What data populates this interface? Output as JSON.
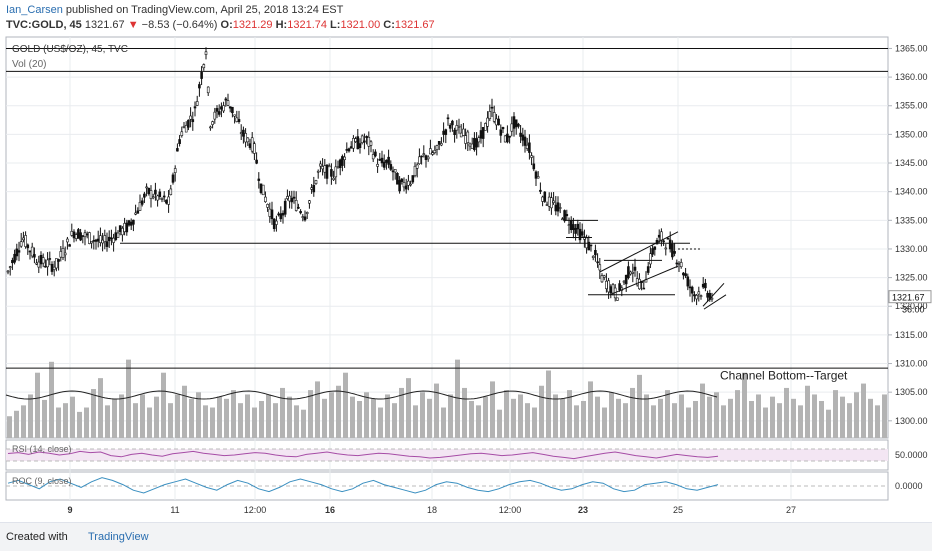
{
  "header": {
    "author": "Ian_Carsen",
    "published_text": " published on TradingView.com, April 25, 2018 13:24 EST",
    "symbol": "TVC:GOLD, 45",
    "last_price": "1321.67",
    "change_arrow": "▼",
    "change": "−8.53 (−0.64%)",
    "o_label": "O:",
    "o_value": "1321.29",
    "h_label": "H:",
    "h_value": "1321.74",
    "l_label": "L:",
    "l_value": "1321.00",
    "c_label": "C:",
    "c_value": "1321.67"
  },
  "footer": {
    "created_with": "Created with",
    "brand": "TradingView"
  },
  "colors": {
    "rsi": "#a64ca6",
    "roc": "#3a8fc0",
    "volume": "#b3b3b3",
    "grid": "#e9ecef",
    "border": "#b0b4bc",
    "text": "#333333"
  },
  "chart_data": {
    "type": "candlestick",
    "title": "GOLD (US$/OZ), 45, TVC",
    "x_ticks": [
      {
        "label": "9",
        "bold": true
      },
      {
        "label": "11",
        "bold": false
      },
      {
        "label": "12:00",
        "bold": false
      },
      {
        "label": "16",
        "bold": true
      },
      {
        "label": "18",
        "bold": false
      },
      {
        "label": "12:00",
        "bold": false
      },
      {
        "label": "23",
        "bold": true
      },
      {
        "label": "25",
        "bold": false
      },
      {
        "label": "27",
        "bold": false
      }
    ],
    "ylim": [
      1297,
      1367
    ],
    "y_ticks": [
      "1365.00",
      "1360.00",
      "1355.00",
      "1350.00",
      "1345.00",
      "1340.00",
      "1335.00",
      "1330.00",
      "1325.00",
      "1320.00",
      "1315.00",
      "1310.00",
      "1305.00",
      "1300.00"
    ],
    "price_label": "1321.67",
    "volume_label": "36.00",
    "price_path": [
      [
        0,
        1326
      ],
      [
        4,
        1332
      ],
      [
        8,
        1328
      ],
      [
        13,
        1327
      ],
      [
        18,
        1333
      ],
      [
        26,
        1331
      ],
      [
        33,
        1334
      ],
      [
        38,
        1340
      ],
      [
        44,
        1338
      ],
      [
        47,
        1350
      ],
      [
        51,
        1354
      ],
      [
        54,
        1365
      ],
      [
        55,
        1352
      ],
      [
        60,
        1356
      ],
      [
        64,
        1350
      ],
      [
        67,
        1348
      ],
      [
        69,
        1341
      ],
      [
        73,
        1334
      ],
      [
        77,
        1339
      ],
      [
        81,
        1336
      ],
      [
        85,
        1344
      ],
      [
        89,
        1343
      ],
      [
        93,
        1348
      ],
      [
        98,
        1349
      ],
      [
        101,
        1345
      ],
      [
        104,
        1345
      ],
      [
        107,
        1341
      ],
      [
        110,
        1342
      ],
      [
        113,
        1346
      ],
      [
        117,
        1347
      ],
      [
        120,
        1352
      ],
      [
        124,
        1350
      ],
      [
        128,
        1348
      ],
      [
        132,
        1354
      ],
      [
        136,
        1349
      ],
      [
        138,
        1352
      ],
      [
        142,
        1348
      ],
      [
        146,
        1339
      ],
      [
        150,
        1337
      ],
      [
        153,
        1335
      ],
      [
        157,
        1332
      ],
      [
        160,
        1329
      ],
      [
        162,
        1325
      ],
      [
        166,
        1322
      ],
      [
        168,
        1324
      ],
      [
        170,
        1327
      ],
      [
        173,
        1323
      ],
      [
        176,
        1330
      ],
      [
        178,
        1332
      ],
      [
        180,
        1331
      ],
      [
        183,
        1328
      ],
      [
        185,
        1325
      ],
      [
        187,
        1322
      ],
      [
        190,
        1323
      ],
      [
        192,
        1321.67
      ]
    ],
    "volume_ylim": [
      0,
      100
    ],
    "volume_values": [
      20,
      25,
      30,
      40,
      60,
      35,
      70,
      28,
      32,
      38,
      24,
      28,
      45,
      55,
      30,
      36,
      40,
      72,
      32,
      40,
      28,
      38,
      60,
      32,
      40,
      48,
      36,
      42,
      30,
      28,
      38,
      36,
      44,
      32,
      40,
      28,
      34,
      40,
      32,
      46,
      38,
      30,
      26,
      44,
      52,
      36,
      42,
      48,
      60,
      38,
      34,
      42,
      36,
      28,
      40,
      32,
      46,
      55,
      30,
      42,
      36,
      50,
      28,
      40,
      72,
      46,
      34,
      30,
      38,
      52,
      26,
      44,
      36,
      40,
      32,
      28,
      48,
      62,
      40,
      36,
      44,
      30,
      34,
      52,
      38,
      28,
      42,
      36,
      32,
      46,
      58,
      40,
      30,
      36,
      44,
      32,
      40,
      28,
      34,
      50,
      38,
      42,
      30,
      36,
      44,
      60,
      34,
      40,
      28,
      38,
      32,
      46,
      36,
      30,
      48,
      40,
      34,
      26,
      44,
      38,
      32,
      42,
      50,
      36,
      30,
      40
    ],
    "volume_ma": {
      "name": "Vol (20)"
    },
    "channel_bottom_annotation": "Channel Bottom--Target",
    "rsi": {
      "name": "RSI (14, close)",
      "tick": "50.0000",
      "ylim": [
        0,
        100
      ],
      "band": [
        30,
        70
      ],
      "values": [
        55,
        58,
        52,
        60,
        56,
        50,
        54,
        62,
        58,
        60,
        48,
        44,
        52,
        56,
        50,
        46,
        54,
        58,
        62,
        56,
        52,
        48,
        50,
        54,
        58,
        56,
        50,
        46,
        44,
        52,
        56,
        60,
        54,
        50,
        48,
        52,
        56,
        54,
        50,
        46,
        44,
        40,
        42,
        46,
        50,
        54,
        56,
        52,
        48,
        50,
        54,
        58,
        52,
        46,
        42,
        38,
        44,
        50,
        56,
        60,
        54,
        48,
        44,
        40,
        46,
        52,
        48,
        44,
        42,
        46
      ]
    },
    "roc": {
      "name": "ROC (9, close)",
      "tick": "0.0000",
      "ylim": [
        -1,
        1
      ],
      "values": [
        0.2,
        0.4,
        0.1,
        -0.2,
        0.3,
        0.5,
        0.2,
        -0.1,
        0.3,
        0.6,
        0.4,
        0.1,
        -0.3,
        -0.5,
        -0.2,
        0.1,
        0.3,
        0.5,
        0.2,
        -0.1,
        -0.3,
        0.1,
        0.4,
        0.2,
        -0.2,
        -0.4,
        -0.1,
        0.3,
        0.5,
        0.3,
        0.1,
        -0.2,
        -0.4,
        -0.2,
        0.2,
        0.4,
        0.1,
        -0.1,
        -0.3,
        -0.5,
        -0.3,
        0.1,
        0.3,
        0.2,
        -0.1,
        -0.3,
        -0.4,
        -0.2,
        0.1,
        0.3,
        0.4,
        0.2,
        -0.1,
        -0.3,
        -0.2,
        0.1,
        0.3,
        0.2,
        -0.2,
        -0.4,
        -0.3,
        0.1,
        0.2,
        0.3,
        0.1,
        -0.2,
        -0.3,
        -0.1,
        0.1
      ]
    }
  }
}
